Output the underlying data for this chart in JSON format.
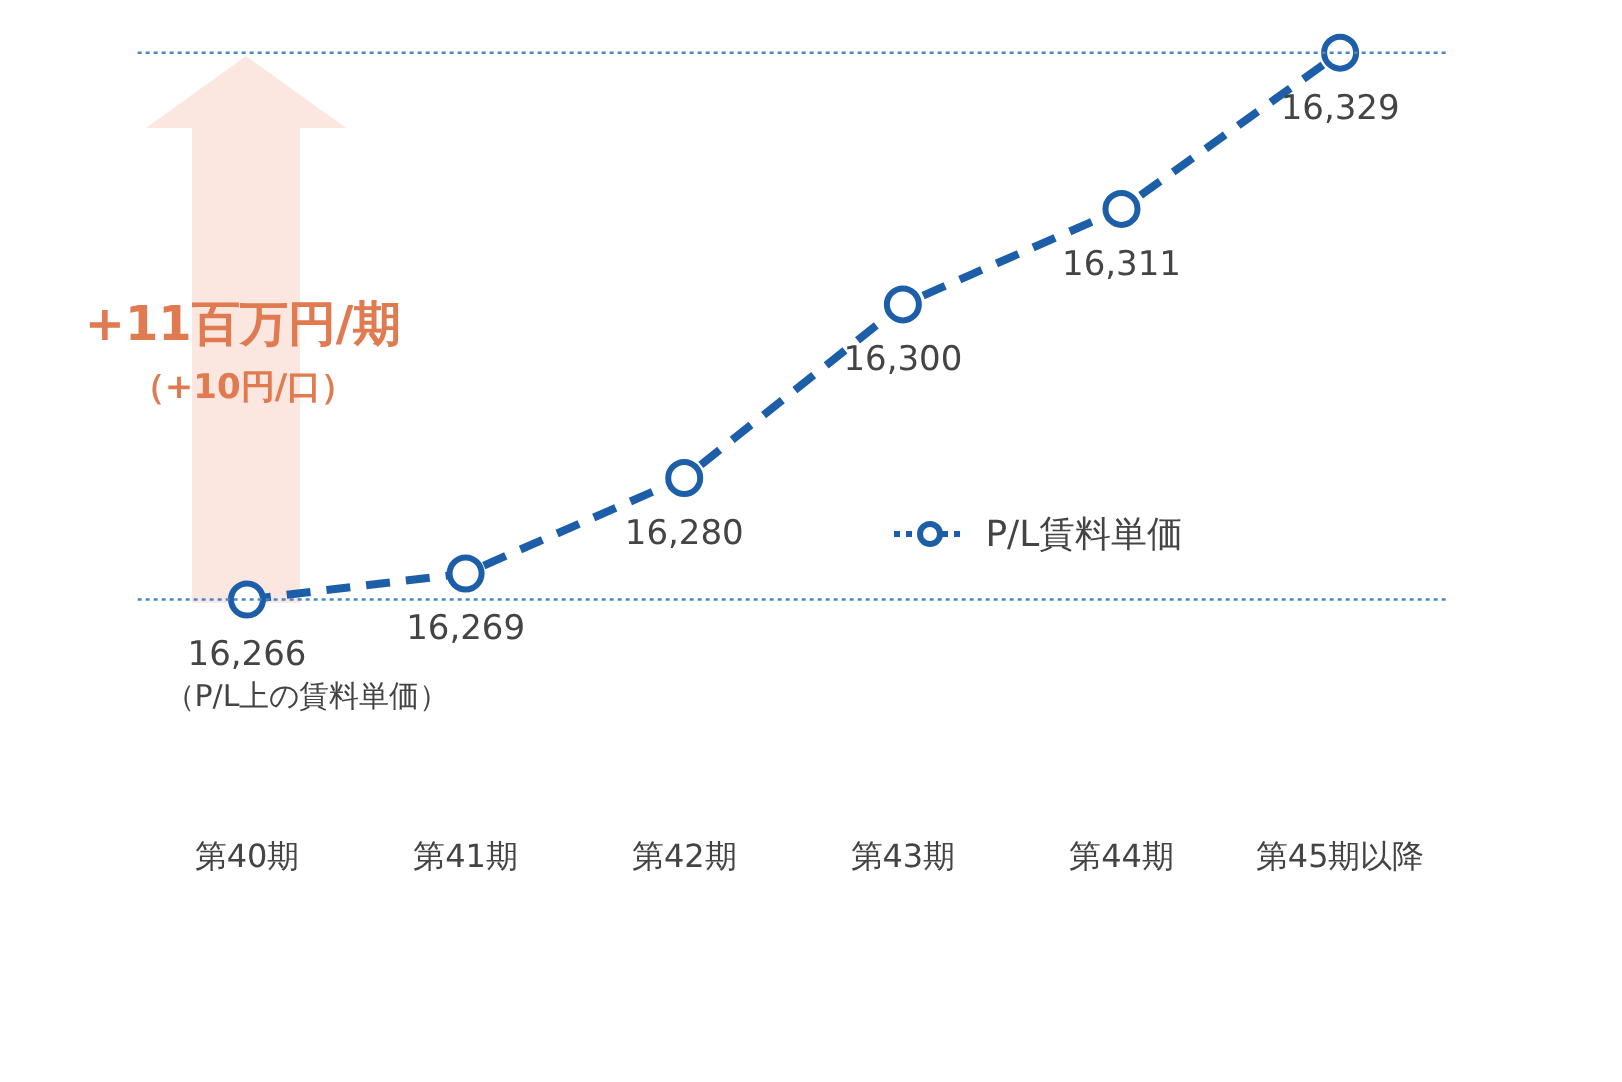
{
  "chart_data": {
    "type": "line",
    "categories": [
      "第40期",
      "第41期",
      "第42期",
      "第43期",
      "第44期",
      "第45期以降"
    ],
    "series": [
      {
        "name": "P/L賃料単価",
        "color": "#1c5fa8",
        "values": [
          16266,
          16269,
          16280,
          16300,
          16311,
          16329
        ],
        "value_labels": [
          "16,266",
          "16,269",
          "16,280",
          "16,300",
          "16,311",
          "16,329"
        ]
      }
    ],
    "line_style": "dashed",
    "marker": "circle",
    "legend": "right",
    "grid": false,
    "tick_labels": "x",
    "ref_lines": [
      {
        "axis": "y",
        "value": 16266,
        "color": "#4a86c8",
        "line_style": "dotted"
      },
      {
        "axis": "y",
        "value": 16329,
        "color": "#4a86c8",
        "line_style": "dotted"
      }
    ],
    "annotations": [
      "+11百万円/期",
      "（+10円/口）",
      {
        "text": "（P/L上の賃料単価）",
        "x": "第40期",
        "y": 16266
      }
    ]
  }
}
